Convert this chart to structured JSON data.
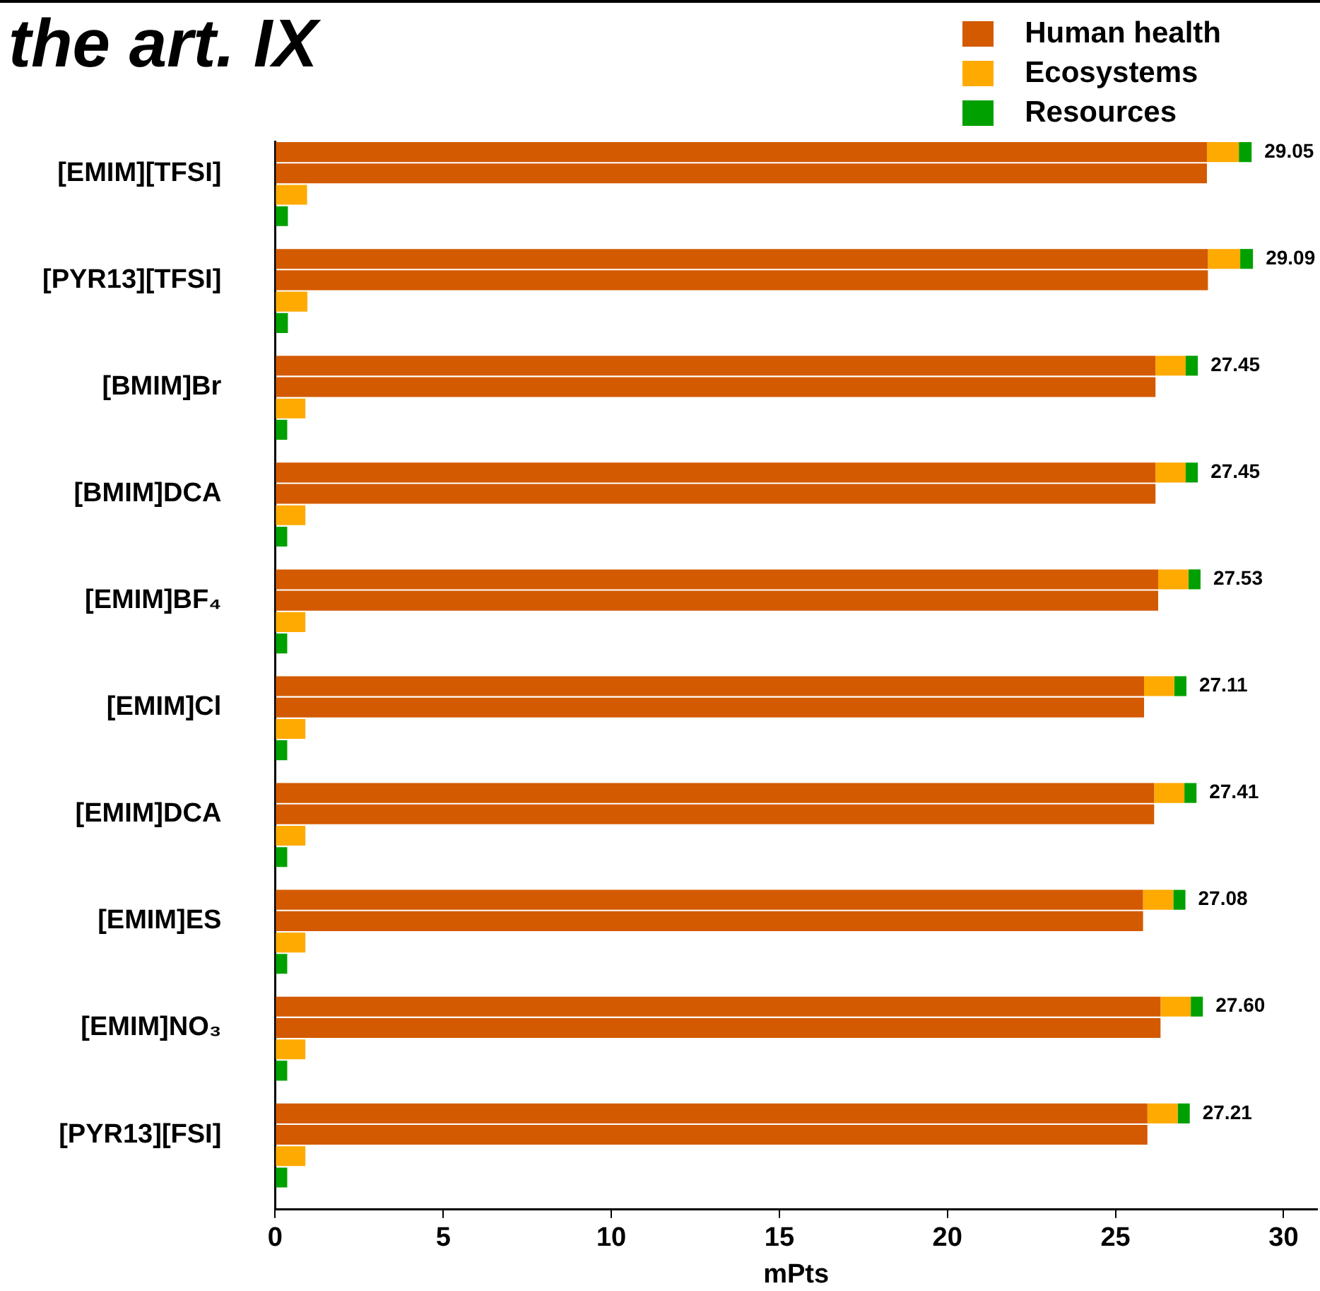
{
  "chart_data": {
    "type": "bar",
    "title": "the art. IX",
    "orientation": "horizontal",
    "stacked": true,
    "xlabel": "mPts",
    "categories": [
      null,
      "[EMIM][TFSI]",
      null,
      null,
      null,
      null,
      "[PYR13][TFSI]",
      null,
      null,
      null,
      null,
      "[BMIM]Br",
      null,
      null,
      null,
      null,
      "[BMIM]DCA",
      null,
      null,
      null,
      null,
      "[EMIM]BF₄",
      null,
      null,
      null,
      null,
      "[EMIM]Cl",
      null,
      null,
      null,
      null,
      "[EMIM]DCA",
      null,
      null,
      null,
      null,
      "[EMIM]ES",
      null,
      null,
      null,
      null,
      "[EMIM]NO₃",
      null,
      null,
      null,
      null,
      "[PYR13][FSI]",
      null,
      null,
      null
    ],
    "series": [
      {
        "name": "Human health",
        "color": "#d35a00",
        "values": [
          27.72,
          27.72,
          null,
          null,
          null,
          27.75,
          27.75,
          null,
          null,
          null,
          26.19,
          26.19,
          null,
          null,
          null,
          26.19,
          26.19,
          null,
          null,
          null,
          26.27,
          26.27,
          null,
          null,
          null,
          25.85,
          25.85,
          null,
          null,
          null,
          26.15,
          26.15,
          null,
          null,
          null,
          25.82,
          25.82,
          null,
          null,
          null,
          26.34,
          26.34,
          null,
          null,
          null,
          25.95,
          25.95,
          null,
          null,
          null
        ]
      },
      {
        "name": "Ecosystems",
        "color": "#ffaa00",
        "values": [
          0.95,
          null,
          0.95,
          null,
          null,
          0.96,
          null,
          0.96,
          null,
          null,
          0.9,
          null,
          0.9,
          null,
          null,
          0.9,
          null,
          0.9,
          null,
          null,
          0.9,
          null,
          0.9,
          null,
          null,
          0.9,
          null,
          0.9,
          null,
          null,
          0.9,
          null,
          0.9,
          null,
          null,
          0.9,
          null,
          0.9,
          null,
          null,
          0.9,
          null,
          0.9,
          null,
          null,
          0.9,
          null,
          0.9,
          null,
          null
        ]
      },
      {
        "name": "Resources",
        "color": "#00a000",
        "values": [
          0.38,
          null,
          null,
          0.38,
          null,
          0.38,
          null,
          null,
          0.38,
          null,
          0.36,
          null,
          null,
          0.36,
          null,
          0.36,
          null,
          null,
          0.36,
          null,
          0.36,
          null,
          null,
          0.36,
          null,
          0.36,
          null,
          null,
          0.36,
          null,
          0.36,
          null,
          null,
          0.36,
          null,
          0.36,
          null,
          null,
          0.36,
          null,
          0.36,
          null,
          null,
          0.36,
          null,
          0.36,
          null,
          null,
          0.36,
          null
        ]
      }
    ],
    "totals": [
      "29.05",
      null,
      null,
      null,
      null,
      "29.09",
      null,
      null,
      null,
      null,
      "27.45",
      null,
      null,
      null,
      null,
      "27.45",
      null,
      null,
      null,
      null,
      "27.53",
      null,
      null,
      null,
      null,
      "27.11",
      null,
      null,
      null,
      null,
      "27.41",
      null,
      null,
      null,
      null,
      "27.08",
      null,
      null,
      null,
      null,
      "27.60",
      null,
      null,
      null,
      null,
      "27.21",
      null,
      null,
      null,
      null
    ],
    "xlim": [
      0,
      31
    ],
    "xticks": [
      0,
      5,
      10,
      15,
      20,
      25,
      30
    ],
    "grid": false,
    "legend": "top right"
  }
}
